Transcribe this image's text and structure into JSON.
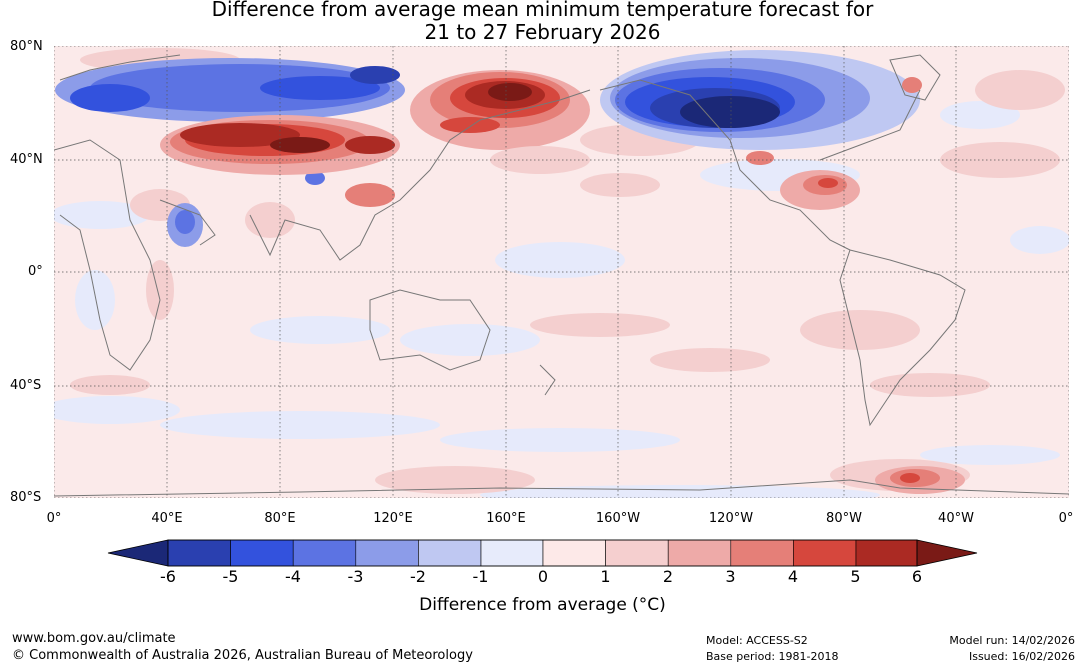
{
  "header": {
    "title_line1": "Difference from average mean minimum temperature forecast for",
    "title_line2": "21 to 27 February 2026"
  },
  "map": {
    "lat_labels": [
      "80°N",
      "40°N",
      "0°",
      "40°S",
      "80°S"
    ],
    "lon_labels": [
      "0°",
      "40°E",
      "80°E",
      "120°E",
      "160°E",
      "160°W",
      "120°W",
      "80°W",
      "40°W",
      "0°"
    ]
  },
  "legend": {
    "title": "Difference from average (°C)",
    "ticks": [
      "-6",
      "-5",
      "-4",
      "-3",
      "-2",
      "-1",
      "0",
      "1",
      "2",
      "3",
      "4",
      "5",
      "6"
    ],
    "colors": [
      "#1b2877",
      "#2a40b0",
      "#3352dd",
      "#5c73e3",
      "#8c9ce9",
      "#bfc8f2",
      "#e7ebfb",
      "#fde9e8",
      "#f5cfcf",
      "#eeaaa8",
      "#e57f78",
      "#d6473d",
      "#ab2a23",
      "#7a1a16"
    ]
  },
  "footer": {
    "website": "www.bom.gov.au/climate",
    "copyright": "© Commonwealth of Australia 2026, Australian Bureau of Meteorology",
    "model": "Model: ACCESS-S2",
    "base_period": "Base period: 1981-2018",
    "model_run": "Model run: 14/02/2026",
    "issued": "Issued: 16/02/2026"
  }
}
